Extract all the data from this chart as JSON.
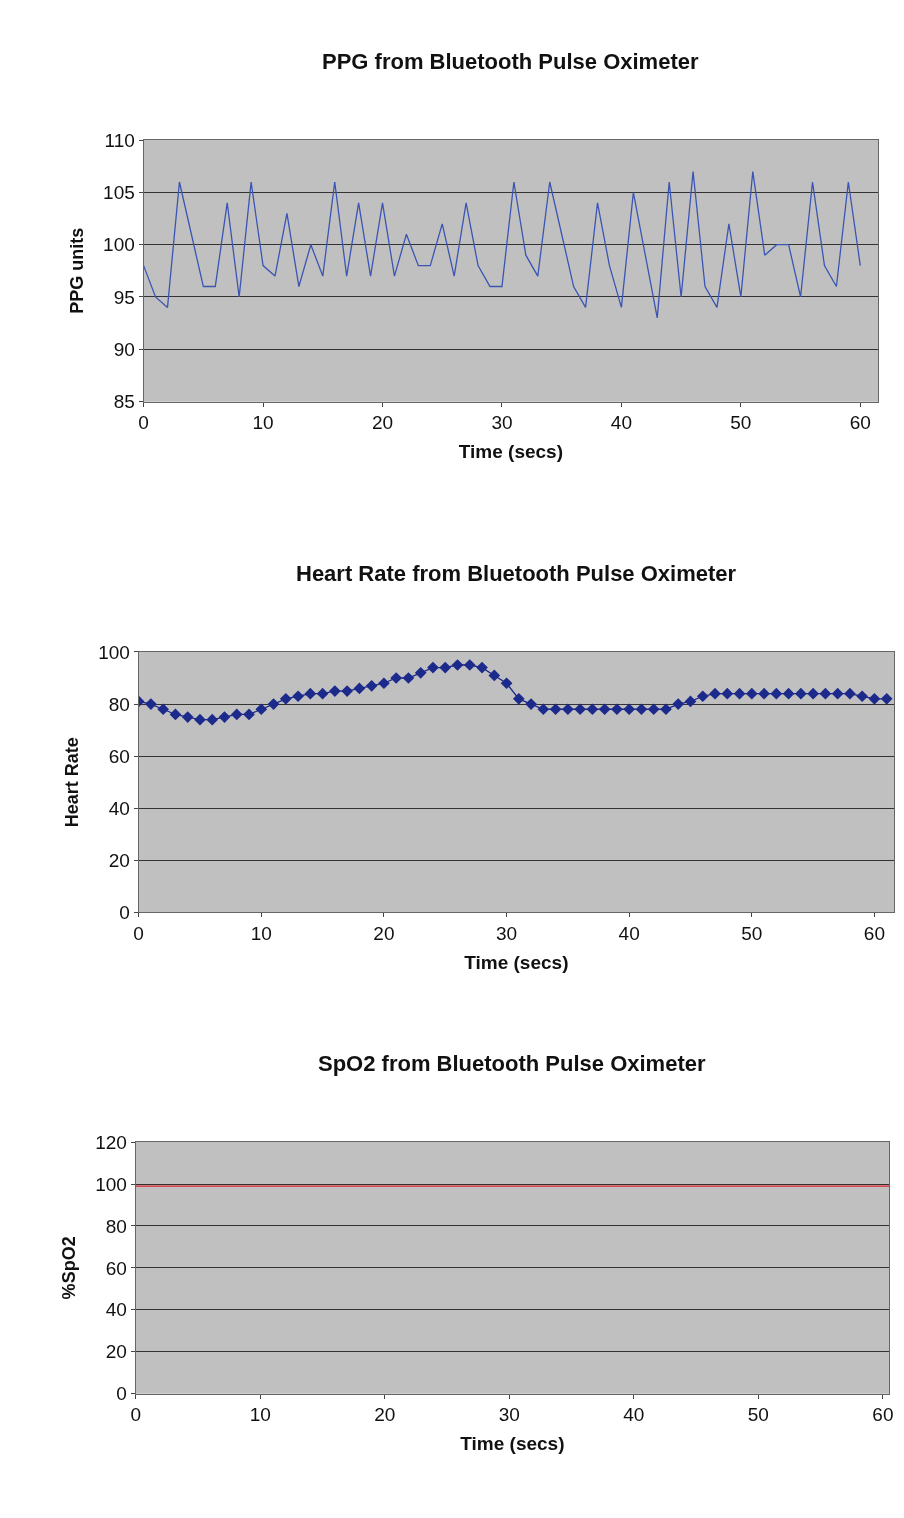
{
  "chart_data": [
    {
      "type": "line",
      "title": "PPG from Bluetooth Pulse Oximeter",
      "xlabel": "Time (secs)",
      "ylabel": "PPG units",
      "xlim": [
        0,
        61.5
      ],
      "ylim": [
        85,
        110
      ],
      "xticks": [
        0,
        10,
        20,
        30,
        40,
        50,
        60
      ],
      "yticks": [
        85,
        90,
        95,
        100,
        105,
        110
      ],
      "grid": "y",
      "marker": "none",
      "x": [
        0,
        1,
        2,
        3,
        4,
        5,
        6,
        7,
        8,
        9,
        10,
        11,
        12,
        13,
        14,
        15,
        16,
        17,
        18,
        19,
        20,
        21,
        22,
        23,
        24,
        25,
        26,
        27,
        28,
        29,
        30,
        31,
        32,
        33,
        34,
        35,
        36,
        37,
        38,
        39,
        40,
        41,
        42,
        43,
        44,
        45,
        46,
        47,
        48,
        49,
        50,
        51,
        52,
        53,
        54,
        55,
        56,
        57,
        58,
        59,
        60
      ],
      "series": [
        {
          "color": "#3a55b4",
          "values": [
            98,
            95,
            94,
            106,
            101,
            96,
            96,
            104,
            95,
            106,
            98,
            97,
            103,
            96,
            100,
            97,
            106,
            97,
            104,
            97,
            104,
            97,
            101,
            98,
            98,
            102,
            97,
            104,
            98,
            96,
            96,
            106,
            99,
            97,
            106,
            101,
            96,
            94,
            104,
            98,
            94,
            105,
            99,
            93,
            106,
            95,
            107,
            96,
            94,
            102,
            95,
            107,
            99,
            100,
            100,
            95,
            106,
            98,
            96,
            106,
            98
          ]
        }
      ]
    },
    {
      "type": "line",
      "title": "Heart Rate from Bluetooth Pulse Oximeter",
      "xlabel": "Time (secs)",
      "ylabel": "Heart Rate",
      "xlim": [
        0,
        61.6
      ],
      "ylim": [
        0,
        100
      ],
      "xticks": [
        0,
        10,
        20,
        30,
        40,
        50,
        60
      ],
      "yticks": [
        0,
        20,
        40,
        60,
        80,
        100
      ],
      "grid": "y",
      "marker": "diamond",
      "x": [
        0,
        1,
        2,
        3,
        4,
        5,
        6,
        7,
        8,
        9,
        10,
        11,
        12,
        13,
        14,
        15,
        16,
        17,
        18,
        19,
        20,
        21,
        22,
        23,
        24,
        25,
        26,
        27,
        28,
        29,
        30,
        31,
        32,
        33,
        34,
        35,
        36,
        37,
        38,
        39,
        40,
        41,
        42,
        43,
        44,
        45,
        46,
        47,
        48,
        49,
        50,
        51,
        52,
        53,
        54,
        55,
        56,
        57,
        58,
        59,
        60,
        61
      ],
      "series": [
        {
          "color": "#1c2a8c",
          "values": [
            81,
            80,
            78,
            76,
            75,
            74,
            74,
            75,
            76,
            76,
            78,
            80,
            82,
            83,
            84,
            84,
            85,
            85,
            86,
            87,
            88,
            90,
            90,
            92,
            94,
            94,
            95,
            95,
            94,
            91,
            88,
            82,
            80,
            78,
            78,
            78,
            78,
            78,
            78,
            78,
            78,
            78,
            78,
            78,
            80,
            81,
            83,
            84,
            84,
            84,
            84,
            84,
            84,
            84,
            84,
            84,
            84,
            84,
            84,
            83,
            82,
            82
          ]
        }
      ]
    },
    {
      "type": "line",
      "title": "SpO2 from Bluetooth Pulse Oximeter",
      "xlabel": "Time (secs)",
      "ylabel": "%SpO2",
      "xlim": [
        0,
        60.5
      ],
      "ylim": [
        0,
        120
      ],
      "xticks": [
        0,
        10,
        20,
        30,
        40,
        50,
        60
      ],
      "yticks": [
        0,
        20,
        40,
        60,
        80,
        100,
        120
      ],
      "grid": "y",
      "marker": "none",
      "x": [
        0,
        60.5
      ],
      "series": [
        {
          "color": "#e0202a",
          "values": [
            99,
            99
          ]
        }
      ]
    }
  ]
}
